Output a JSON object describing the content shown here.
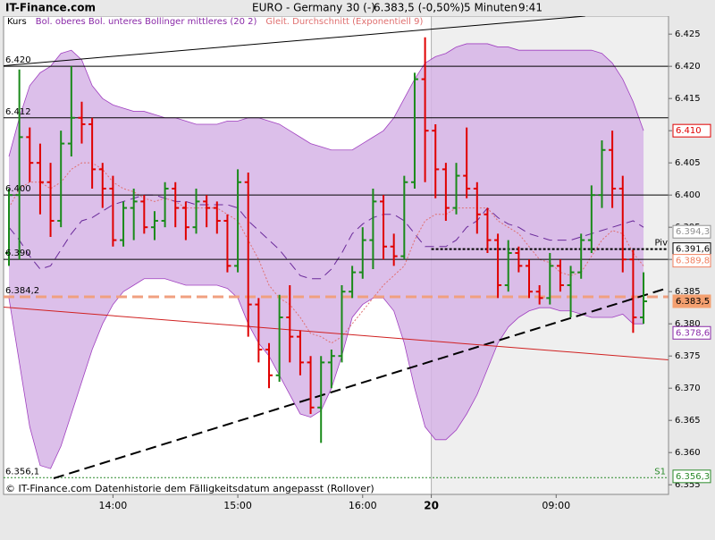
{
  "chart_data": {
    "type": "ohlc",
    "site": "IT-Finance.com",
    "title": "EURO - Germany 30 (-)",
    "quote": "6.383,5 (-0,50%)",
    "interval": "5 Minuten",
    "time": "9:41",
    "legend": [
      {
        "text": "Kurs",
        "color": "#000000"
      },
      {
        "text": "Bol. oberes Bol. unteres Bollinger mittleres (20 2)",
        "color": "#8a2aa8"
      },
      {
        "text": "Gleit. Durchschnitt (Exponentiell 9)",
        "color": "#e07070"
      }
    ],
    "footer": "© IT-Finance.com Datenhistorie dem Fälligkeitsdatum angepasst (Rollover)",
    "categories": [
      null,
      null,
      null,
      null,
      null,
      null,
      null,
      null,
      null,
      null,
      "14:00",
      null,
      null,
      null,
      null,
      null,
      null,
      null,
      null,
      null,
      null,
      null,
      "15:00",
      null,
      null,
      null,
      null,
      null,
      null,
      null,
      null,
      null,
      null,
      null,
      "16:00",
      null,
      null,
      null,
      null,
      null,
      "20",
      null,
      null,
      null,
      null,
      null,
      null,
      null,
      null,
      null,
      null,
      null,
      "09:00",
      null,
      null,
      null,
      null,
      null,
      null,
      null,
      null,
      null
    ],
    "session_break": 40,
    "up_color": "#1a8a1a",
    "down_color": "#e00000",
    "open": [
      6.391,
      6.4,
      6.409,
      6.405,
      6.402,
      6.396,
      6.408,
      6.412,
      6.411,
      6.404,
      6.401,
      6.393,
      6.398,
      6.399,
      6.395,
      6.396,
      6.401,
      6.398,
      6.395,
      6.399,
      6.398,
      6.396,
      6.389,
      6.402,
      6.383,
      6.376,
      6.372,
      6.381,
      6.378,
      6.374,
      6.367,
      6.374,
      6.375,
      6.385,
      6.388,
      6.393,
      6.399,
      6.392,
      6.3905,
      6.402,
      6.418,
      6.41,
      6.404,
      6.398,
      6.403,
      6.401,
      6.397,
      6.393,
      6.386,
      6.391,
      6.389,
      6.385,
      6.384,
      6.389,
      6.386,
      6.388,
      6.393,
      6.4,
      6.407,
      6.401,
      6.39,
      6.381
    ],
    "high": [
      6.401,
      6.4195,
      6.4105,
      6.408,
      6.405,
      6.41,
      6.42,
      6.4145,
      6.412,
      6.405,
      6.403,
      6.399,
      6.401,
      6.4,
      6.3975,
      6.402,
      6.402,
      6.399,
      6.401,
      6.4,
      6.399,
      6.397,
      6.404,
      6.4035,
      6.384,
      6.377,
      6.3845,
      6.386,
      6.379,
      6.375,
      6.375,
      6.376,
      6.386,
      6.389,
      6.395,
      6.401,
      6.4,
      6.394,
      6.403,
      6.419,
      6.4245,
      6.411,
      6.405,
      6.405,
      6.4105,
      6.402,
      6.398,
      6.394,
      6.393,
      6.392,
      6.39,
      6.386,
      6.391,
      6.39,
      6.389,
      6.394,
      6.4015,
      6.4085,
      6.41,
      6.403,
      6.3915,
      6.388
    ],
    "low": [
      6.389,
      6.39,
      6.402,
      6.397,
      6.3935,
      6.395,
      6.406,
      6.408,
      6.401,
      6.398,
      6.392,
      6.392,
      6.393,
      6.394,
      6.393,
      6.395,
      6.395,
      6.393,
      6.394,
      6.395,
      6.394,
      6.388,
      6.388,
      6.378,
      6.374,
      6.37,
      6.371,
      6.374,
      6.372,
      6.366,
      6.3615,
      6.37,
      6.374,
      6.384,
      6.387,
      6.3885,
      6.39,
      6.389,
      6.39,
      6.401,
      6.402,
      6.3995,
      6.396,
      6.397,
      6.3995,
      6.394,
      6.391,
      6.384,
      6.385,
      6.388,
      6.384,
      6.383,
      6.383,
      6.385,
      6.381,
      6.387,
      6.391,
      6.398,
      6.398,
      6.388,
      6.3786,
      6.38
    ],
    "close": [
      6.4,
      6.409,
      6.405,
      6.402,
      6.396,
      6.408,
      6.412,
      6.411,
      6.404,
      6.401,
      6.393,
      6.398,
      6.399,
      6.395,
      6.396,
      6.401,
      6.398,
      6.395,
      6.399,
      6.398,
      6.396,
      6.389,
      6.402,
      6.383,
      6.376,
      6.372,
      6.381,
      6.378,
      6.374,
      6.367,
      6.374,
      6.375,
      6.385,
      6.388,
      6.393,
      6.399,
      6.392,
      6.3905,
      6.402,
      6.418,
      6.41,
      6.404,
      6.398,
      6.403,
      6.401,
      6.397,
      6.393,
      6.386,
      6.391,
      6.389,
      6.385,
      6.384,
      6.389,
      6.386,
      6.388,
      6.393,
      6.4,
      6.407,
      6.401,
      6.39,
      6.381,
      6.3835
    ],
    "bollinger": {
      "color": "#a040c0",
      "fill": "#d6b4e6",
      "upper": [
        6.406,
        6.412,
        6.417,
        6.419,
        6.42,
        6.422,
        6.4225,
        6.421,
        6.417,
        6.415,
        6.414,
        6.4135,
        6.413,
        6.413,
        6.4125,
        6.412,
        6.412,
        6.4115,
        6.411,
        6.411,
        6.411,
        6.4115,
        6.4115,
        6.412,
        6.412,
        6.4115,
        6.411,
        6.41,
        6.409,
        6.408,
        6.4075,
        6.407,
        6.407,
        6.407,
        6.408,
        6.409,
        6.41,
        6.412,
        6.415,
        6.418,
        6.4205,
        6.4215,
        6.422,
        6.423,
        6.4235,
        6.4235,
        6.4235,
        6.423,
        6.423,
        6.4225,
        6.4225,
        6.4225,
        6.4225,
        6.4225,
        6.4225,
        6.4225,
        6.4225,
        6.422,
        6.4205,
        6.418,
        6.4145,
        6.41
      ],
      "lower": [
        6.384,
        6.374,
        6.364,
        6.358,
        6.3575,
        6.361,
        6.366,
        6.371,
        6.376,
        6.38,
        6.383,
        6.385,
        6.386,
        6.387,
        6.387,
        6.387,
        6.3865,
        6.386,
        6.386,
        6.386,
        6.386,
        6.3855,
        6.384,
        6.38,
        6.377,
        6.375,
        6.372,
        6.369,
        6.366,
        6.3655,
        6.3665,
        6.37,
        6.375,
        6.381,
        6.383,
        6.384,
        6.384,
        6.382,
        6.377,
        6.37,
        6.364,
        6.362,
        6.362,
        6.3635,
        6.366,
        6.369,
        6.373,
        6.377,
        6.3795,
        6.381,
        6.382,
        6.3825,
        6.3825,
        6.382,
        6.382,
        6.3815,
        6.381,
        6.381,
        6.381,
        6.3815,
        6.38,
        6.38
      ],
      "middle": [
        6.395,
        6.393,
        6.3905,
        6.3885,
        6.389,
        6.3915,
        6.394,
        6.396,
        6.3965,
        6.3975,
        6.3985,
        6.399,
        6.3995,
        6.4,
        6.4,
        6.3995,
        6.399,
        6.399,
        6.3985,
        6.3985,
        6.3985,
        6.3985,
        6.398,
        6.396,
        6.3945,
        6.393,
        6.3915,
        6.3895,
        6.3875,
        6.387,
        6.387,
        6.3885,
        6.391,
        6.394,
        6.3955,
        6.3965,
        6.397,
        6.397,
        6.396,
        6.394,
        6.392,
        6.392,
        6.392,
        6.393,
        6.395,
        6.396,
        6.398,
        6.3965,
        6.3955,
        6.395,
        6.394,
        6.3935,
        6.393,
        6.393,
        6.393,
        6.3935,
        6.394,
        6.3945,
        6.395,
        6.3955,
        6.396,
        6.395
      ]
    },
    "ema": {
      "color": "#e07070",
      "values": [
        6.398,
        6.401,
        6.402,
        6.402,
        6.401,
        6.402,
        6.404,
        6.405,
        6.405,
        6.404,
        6.402,
        6.401,
        6.4005,
        6.3995,
        6.399,
        6.3995,
        6.399,
        6.398,
        6.398,
        6.398,
        6.398,
        6.397,
        6.396,
        6.393,
        6.39,
        6.386,
        6.384,
        6.383,
        6.381,
        6.3785,
        6.378,
        6.377,
        6.378,
        6.38,
        6.382,
        6.384,
        6.386,
        6.3875,
        6.389,
        6.393,
        6.396,
        6.397,
        6.397,
        6.398,
        6.398,
        6.398,
        6.398,
        6.396,
        6.395,
        6.394,
        6.392,
        6.39,
        6.3895,
        6.388,
        6.3875,
        6.388,
        6.3905,
        6.393,
        6.3945,
        6.394,
        6.391,
        6.389
      ]
    },
    "levels": [
      {
        "value": 6.42,
        "label": "6.420",
        "color": "#000000",
        "style": "solid"
      },
      {
        "value": 6.412,
        "label": "6.412",
        "color": "#000000",
        "style": "solid"
      },
      {
        "value": 6.4,
        "label": "6.400",
        "color": "#000000",
        "style": "solid"
      },
      {
        "value": 6.39,
        "label": "6.390",
        "color": "#000000",
        "style": "solid"
      },
      {
        "value": 6.3842,
        "label": "6.384,2",
        "color": "#f0a080",
        "style": "dashed"
      },
      {
        "value": 6.3561,
        "label": "6.356,1",
        "color": "#2a8a2a",
        "style": "dotted",
        "right_label": "S1"
      }
    ],
    "pivot": {
      "value": 6.3916,
      "label": "Piv",
      "color": "#000000",
      "start": 40
    },
    "trendlines": [
      {
        "x": [
          -0.5,
          55.4
        ],
        "y": [
          6.4201,
          6.4278
        ],
        "color": "#000000",
        "style": "solid"
      },
      {
        "x": [
          4.3,
          63.4
        ],
        "y": [
          6.356,
          6.3856
        ],
        "color": "#000000",
        "style": "dashed"
      },
      {
        "x": [
          -0.5,
          63.4
        ],
        "y": [
          6.3826,
          6.3744
        ],
        "color": "#d02020",
        "style": "solid"
      }
    ],
    "price_boxes": [
      {
        "value": 6.41,
        "label": "6.410",
        "color": "#e00000"
      },
      {
        "value": 6.3943,
        "label": "6.394,3",
        "color": "#909090"
      },
      {
        "value": 6.3916,
        "label": "6.391,6",
        "color": "#000000"
      },
      {
        "value": 6.3898,
        "label": "6.389,8",
        "color": "#f08060"
      },
      {
        "value": 6.3835,
        "label": "6.383,5",
        "color": "#f4a070",
        "filled": true
      },
      {
        "value": 6.3786,
        "label": "6.378,6",
        "color": "#8a2aa8"
      },
      {
        "value": 6.3563,
        "label": "6.356,3",
        "color": "#2a8a2a"
      }
    ],
    "ylim": [
      6.3535,
      6.4278
    ],
    "yticks": [
      6.425,
      {
        "value": 6.42,
        "label": "6.420"
      },
      6.415,
      {
        "value": 6.41,
        "label": "6.410"
      },
      6.405,
      {
        "value": 6.4,
        "label": "6.400"
      },
      6.395,
      {
        "value": 6.39,
        "label": "6.390"
      },
      6.385,
      {
        "value": 6.38,
        "label": "6.380"
      },
      6.375,
      {
        "value": 6.37,
        "label": "6.370"
      },
      6.365,
      {
        "value": 6.36,
        "label": "6.360"
      },
      6.355
    ]
  }
}
